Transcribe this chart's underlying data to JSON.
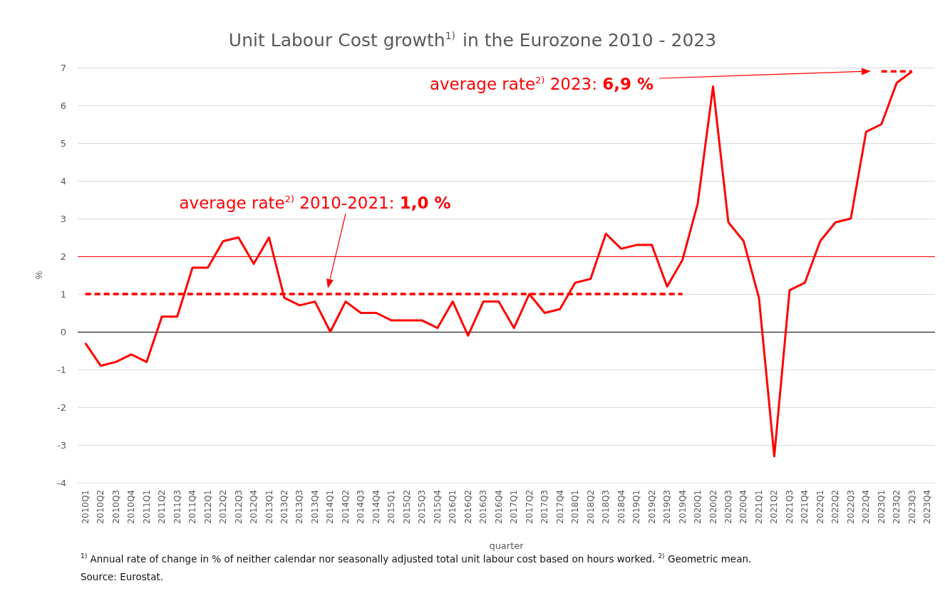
{
  "chart_data": {
    "type": "line",
    "title": "Unit Labour Cost growth$^{1)}$ in the Eurozone 2010 - 2023",
    "xlabel": "quarter",
    "ylabel": "%",
    "categories": [
      "2010Q1",
      "2010Q2",
      "2010Q3",
      "2010Q4",
      "2011Q1",
      "2011Q2",
      "2011Q3",
      "2011Q4",
      "2012Q1",
      "2012Q2",
      "2012Q3",
      "2012Q4",
      "2013Q1",
      "2013Q2",
      "2013Q3",
      "2013Q4",
      "2014Q1",
      "2014Q2",
      "2014Q3",
      "2014Q4",
      "2015Q1",
      "2015Q2",
      "2015Q3",
      "2015Q4",
      "2016Q1",
      "2016Q2",
      "2016Q3",
      "2016Q4",
      "2017Q1",
      "2017Q2",
      "2017Q3",
      "2017Q4",
      "2018Q1",
      "2018Q2",
      "2018Q3",
      "2018Q4",
      "2019Q1",
      "2019Q2",
      "2019Q3",
      "2019Q4",
      "2020Q1",
      "2020Q2",
      "2020Q3",
      "2020Q4",
      "2021Q1",
      "2021Q2",
      "2021Q3",
      "2021Q4",
      "2022Q1",
      "2022Q2",
      "2022Q3",
      "2022Q4",
      "2023Q1",
      "2023Q2",
      "2023Q3",
      "2023Q4"
    ],
    "series": [
      {
        "color": "#ff0000",
        "line_style": "solid",
        "values": [
          -0.3,
          -0.9,
          -0.8,
          -0.6,
          -0.8,
          0.4,
          0.4,
          1.7,
          1.7,
          2.4,
          2.5,
          1.8,
          2.5,
          0.9,
          0.7,
          0.8,
          0.0,
          0.8,
          0.5,
          0.5,
          0.3,
          0.3,
          0.3,
          0.1,
          0.8,
          -0.1,
          0.8,
          0.8,
          0.1,
          1.0,
          0.5,
          0.6,
          1.3,
          1.4,
          2.6,
          2.2,
          2.3,
          2.3,
          1.2,
          1.9,
          3.4,
          6.5,
          2.9,
          2.4,
          0.9,
          -3.3,
          1.1,
          1.3,
          2.4,
          2.9,
          3.0,
          5.3,
          5.5,
          6.6,
          6.9,
          null
        ]
      },
      {
        "color": "#ff0000",
        "line_style": "dashed",
        "values": [
          1.0,
          1.0,
          1.0,
          1.0,
          1.0,
          1.0,
          1.0,
          1.0,
          1.0,
          1.0,
          1.0,
          1.0,
          1.0,
          1.0,
          1.0,
          1.0,
          1.0,
          1.0,
          1.0,
          1.0,
          1.0,
          1.0,
          1.0,
          1.0,
          1.0,
          1.0,
          1.0,
          1.0,
          1.0,
          1.0,
          1.0,
          1.0,
          1.0,
          1.0,
          1.0,
          1.0,
          1.0,
          1.0,
          1.0,
          1.0,
          null,
          null,
          null,
          null,
          null,
          null,
          null,
          null,
          null,
          null,
          null,
          null,
          null,
          null,
          null,
          null
        ]
      },
      {
        "color": "#ff0000",
        "line_style": "dashed",
        "values": [
          null,
          null,
          null,
          null,
          null,
          null,
          null,
          null,
          null,
          null,
          null,
          null,
          null,
          null,
          null,
          null,
          null,
          null,
          null,
          null,
          null,
          null,
          null,
          null,
          null,
          null,
          null,
          null,
          null,
          null,
          null,
          null,
          null,
          null,
          null,
          null,
          null,
          null,
          null,
          null,
          null,
          null,
          null,
          null,
          null,
          null,
          null,
          null,
          null,
          null,
          null,
          null,
          6.9,
          6.9,
          6.9,
          null
        ]
      }
    ],
    "ylim": [
      -4,
      7
    ],
    "yticks": [
      -4,
      -3,
      -2,
      -1,
      0,
      1,
      2,
      3,
      4,
      5,
      6,
      7
    ],
    "grid": "y",
    "marker": "none",
    "ref_lines": [
      {
        "axis": "y",
        "value": 2,
        "color": "#ff0000"
      },
      {
        "axis": "y",
        "value": 0,
        "color": "#000000"
      }
    ],
    "annotations": [
      "average rate$^{2)}$ 2010-2021: 1,0 %",
      "average rate$^{2)}$ 2023: 6,9 %",
      "$^{1)}$ Annual rate of change in % of neither calendar nor seasonally adjusted total unit labour cost based on hours worked. $^{2)}$ Geometric mean.",
      "Source: Eurostat."
    ]
  }
}
